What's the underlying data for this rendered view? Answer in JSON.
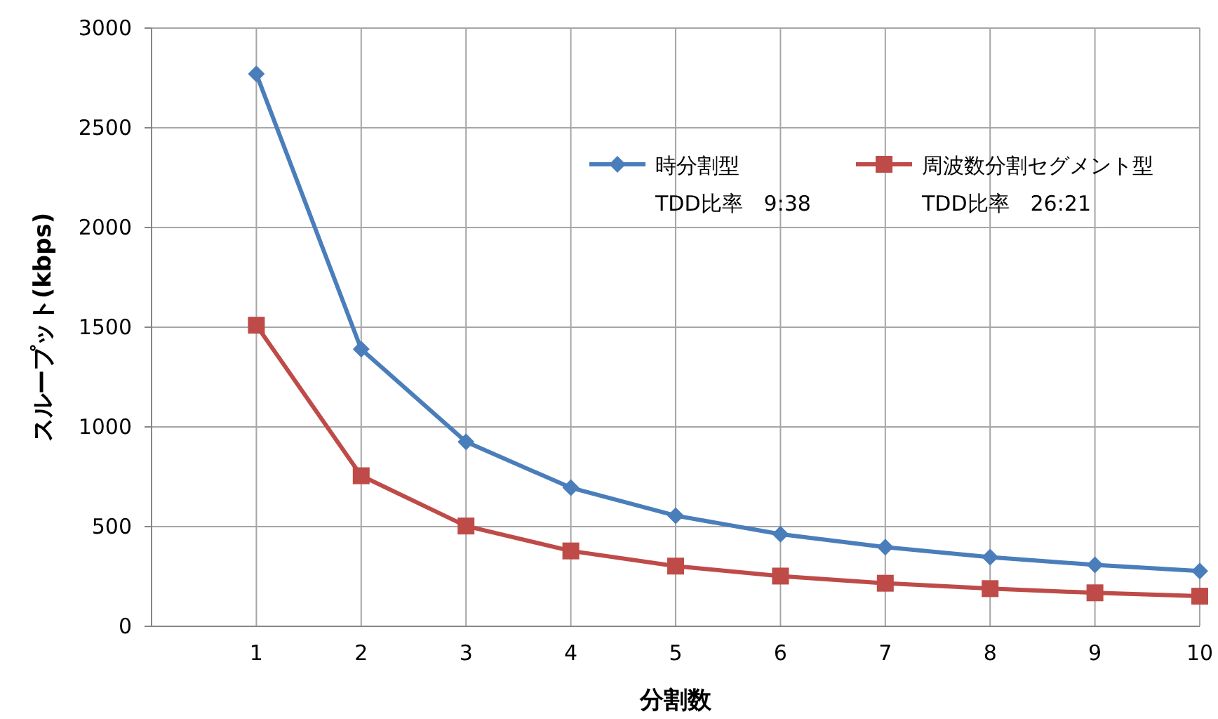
{
  "chart_data": {
    "type": "line",
    "xlabel": "分割数",
    "ylabel": "スループット(kbps)",
    "x": [
      1,
      2,
      3,
      4,
      5,
      6,
      7,
      8,
      9,
      10
    ],
    "xlim": [
      0,
      10
    ],
    "xticks": [
      1,
      2,
      3,
      4,
      5,
      6,
      7,
      8,
      9,
      10
    ],
    "ylim": [
      0,
      3000
    ],
    "yticks": [
      0,
      500,
      1000,
      1500,
      2000,
      2500,
      3000
    ],
    "grid": true,
    "legend": "top right",
    "series": [
      {
        "name": "時分割型TDD比率　9:38",
        "color": "#4a7ebb",
        "marker": "diamond",
        "values": [
          2770,
          1390,
          925,
          695,
          555,
          462,
          397,
          347,
          308,
          277
        ]
      },
      {
        "name": "周波数分割セグメント型TDD比率　26:21",
        "color": "#be4b48",
        "marker": "square",
        "values": [
          1510,
          755,
          503,
          378,
          302,
          252,
          216,
          189,
          168,
          151
        ]
      }
    ]
  }
}
